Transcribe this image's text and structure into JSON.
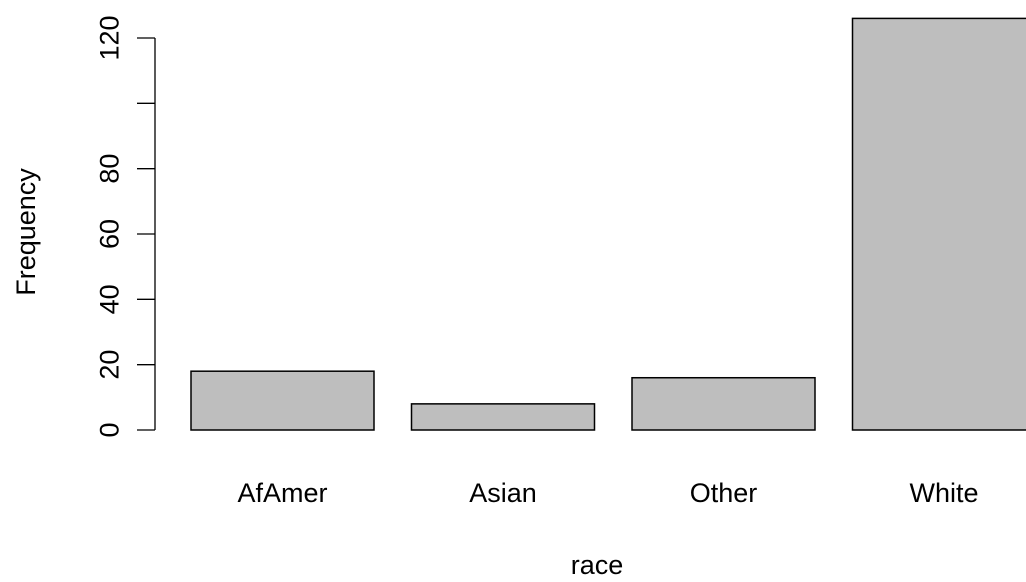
{
  "chart_data": {
    "type": "bar",
    "title": "",
    "xlabel": "race",
    "ylabel": "Frequency",
    "categories": [
      "AfAmer",
      "Asian",
      "Other",
      "White"
    ],
    "values": [
      18,
      8,
      16,
      126
    ],
    "ylim": [
      0,
      120
    ],
    "yticks": [
      0,
      20,
      40,
      60,
      80,
      100,
      120
    ],
    "ytick_labels": [
      "0",
      "20",
      "40",
      "60",
      "80",
      "",
      "120"
    ],
    "grid": false,
    "legend": "none",
    "bar_fill": "#bebebe",
    "bar_stroke": "#000000"
  }
}
